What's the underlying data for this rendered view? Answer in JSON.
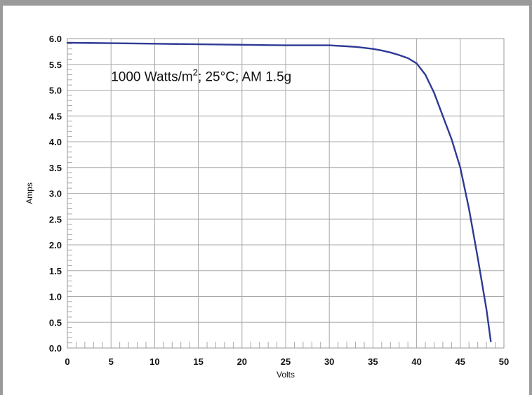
{
  "chart_data": {
    "type": "line",
    "xlabel": "Volts",
    "ylabel": "Amps",
    "xlim": [
      0,
      50
    ],
    "ylim": [
      0,
      6
    ],
    "x_ticks": [
      "0",
      "5",
      "10",
      "15",
      "20",
      "25",
      "30",
      "35",
      "40",
      "45",
      "50"
    ],
    "y_ticks": [
      "0.0",
      "0.5",
      "1.0",
      "1.5",
      "2.0",
      "2.5",
      "3.0",
      "3.5",
      "4.0",
      "4.5",
      "5.0",
      "5.5",
      "6.0"
    ],
    "grid": true,
    "annotation": {
      "prefix": "1000 Watts/m",
      "sup": "2",
      "suffix": "; 25°C; AM 1.5g"
    },
    "series": [
      {
        "color": "#2e3a94",
        "x": [
          0,
          5,
          10,
          15,
          20,
          25,
          30,
          31,
          32,
          33,
          34,
          35,
          36,
          37,
          38,
          39,
          40,
          41,
          42,
          43,
          44,
          45,
          46,
          47,
          48,
          48.5
        ],
        "y": [
          5.92,
          5.91,
          5.9,
          5.89,
          5.88,
          5.87,
          5.87,
          5.86,
          5.85,
          5.84,
          5.82,
          5.8,
          5.77,
          5.73,
          5.68,
          5.62,
          5.52,
          5.3,
          4.95,
          4.5,
          4.05,
          3.5,
          2.7,
          1.75,
          0.75,
          0.13
        ]
      }
    ]
  }
}
